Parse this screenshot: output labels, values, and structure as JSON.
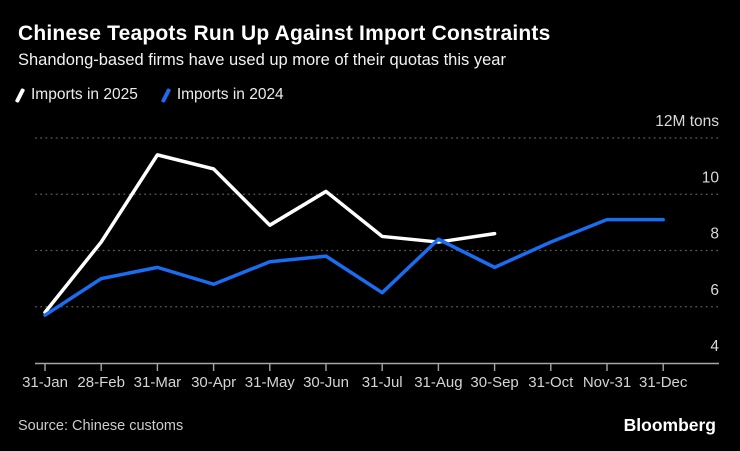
{
  "header": {
    "title": "Chinese Teapots Run Up Against Import Constraints",
    "subtitle": "Shandong-based firms have used up more of their quotas this year"
  },
  "legend": [
    {
      "label": "Imports in 2025",
      "color": "#ffffff"
    },
    {
      "label": "Imports in 2024",
      "color": "#1a6df0"
    }
  ],
  "chart_data": {
    "type": "line",
    "title": "Chinese Teapots Run Up Against Import Constraints",
    "subtitle": "Shandong-based firms have used up more of their quotas this year",
    "unit_label": "12M tons",
    "ylabel": "Million tons",
    "ylim": [
      4,
      12
    ],
    "y_ticks": [
      4,
      6,
      8,
      10,
      12
    ],
    "grid": "horizontal-dotted",
    "legend_position": "top-left",
    "x_tick_labels": [
      "31-Jan",
      "28-Feb",
      "31-Mar",
      "30-Apr",
      "31-May",
      "30-Jun",
      "31-Jul",
      "31-Aug",
      "30-Sep",
      "31-Oct",
      "Nov-31",
      "31-Dec"
    ],
    "series": [
      {
        "name": "Imports in 2025",
        "color": "#ffffff",
        "values": [
          5.8,
          8.3,
          11.4,
          10.9,
          8.9,
          10.1,
          8.5,
          8.3,
          8.6
        ]
      },
      {
        "name": "Imports in 2024",
        "color": "#1a6df0",
        "values": [
          5.7,
          7.0,
          7.4,
          6.8,
          7.6,
          7.8,
          6.5,
          8.4,
          7.4,
          8.3,
          9.1,
          9.1
        ]
      }
    ]
  },
  "footer": {
    "source": "Source: Chinese customs",
    "brand": "Bloomberg"
  },
  "colors": {
    "background": "#000000",
    "series_2025": "#ffffff",
    "series_2024": "#1a6df0",
    "gridline": "#5c5c5c",
    "axis": "#a6a6a6",
    "axis_text": "#d4d4d4"
  }
}
